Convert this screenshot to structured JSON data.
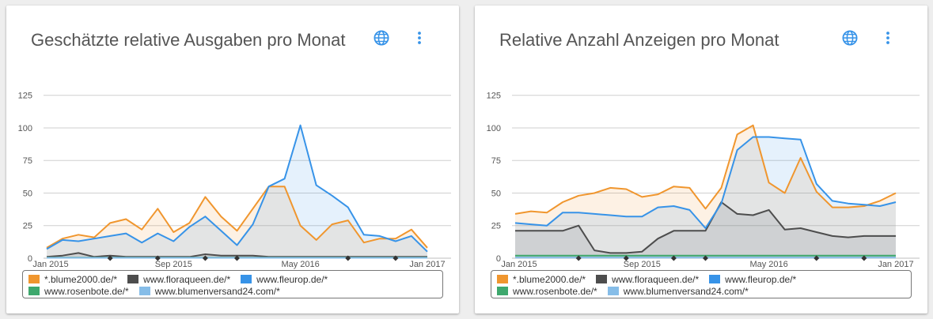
{
  "chart_data": [
    {
      "type": "area",
      "title": "Geschätzte relative Ausgaben pro Monat",
      "y_ticks": [
        "0",
        "25",
        "50",
        "75",
        "100",
        "125"
      ],
      "ylim": [
        0,
        125
      ],
      "x_ticks": [
        {
          "label": "Jan 2015",
          "x": 0
        },
        {
          "label": "Sep 2015",
          "x": 8
        },
        {
          "label": "May 2016",
          "x": 16
        },
        {
          "label": "Jan 2017",
          "x": 24
        }
      ],
      "x_range": [
        0,
        25
      ],
      "event_markers": [
        4,
        7,
        10,
        12,
        19,
        22
      ],
      "grid": true,
      "legend_position": "bottom",
      "series": [
        {
          "name": "*.blume2000.de/*",
          "color": "#f0962e",
          "values": [
            8,
            15,
            18,
            16,
            27,
            30,
            22,
            38,
            20,
            27,
            47,
            32,
            21,
            38,
            55,
            55,
            25,
            14,
            26,
            29,
            12,
            15,
            15,
            22,
            8
          ]
        },
        {
          "name": "www.floraqueen.de/*",
          "color": "#4d4d4d",
          "values": [
            1,
            2,
            4,
            1,
            2,
            1,
            1,
            1,
            1,
            1,
            3,
            2,
            2,
            2,
            1,
            1,
            1,
            1,
            1,
            1,
            1,
            1,
            1,
            1,
            1
          ]
        },
        {
          "name": "www.fleurop.de/*",
          "color": "#3793e8",
          "values": [
            7,
            14,
            13,
            15,
            17,
            19,
            12,
            19,
            13,
            24,
            32,
            21,
            10,
            26,
            55,
            61,
            102,
            56,
            48,
            39,
            18,
            17,
            13,
            17,
            5
          ]
        },
        {
          "name": "www.rosenbote.de/*",
          "color": "#3ea86d",
          "values": [
            0.5,
            0.5,
            0.5,
            0.5,
            0.5,
            0.5,
            0.5,
            0.5,
            0.5,
            0.5,
            0.5,
            0.5,
            0.5,
            0.5,
            0.5,
            0.5,
            0.5,
            0.5,
            0.5,
            0.5,
            0.5,
            0.5,
            0.5,
            0.5,
            0.5
          ]
        },
        {
          "name": "www.blumenversand24.com/*",
          "color": "#86bde8",
          "values": [
            0.3,
            0.3,
            0.3,
            0.3,
            0.3,
            0.3,
            0.3,
            0.3,
            0.3,
            0.3,
            0.3,
            0.3,
            0.3,
            0.3,
            0.3,
            0.3,
            0.3,
            0.3,
            0.3,
            0.3,
            0.3,
            0.3,
            0.3,
            0.3,
            0.3
          ]
        }
      ]
    },
    {
      "type": "area",
      "title": "Relative Anzahl Anzeigen pro Monat",
      "y_ticks": [
        "0",
        "25",
        "50",
        "75",
        "100",
        "125"
      ],
      "ylim": [
        0,
        125
      ],
      "x_ticks": [
        {
          "label": "Jan 2015",
          "x": 0
        },
        {
          "label": "Sep 2015",
          "x": 8
        },
        {
          "label": "May 2016",
          "x": 16
        },
        {
          "label": "Jan 2017",
          "x": 24
        }
      ],
      "x_range": [
        0,
        25
      ],
      "event_markers": [
        4,
        7,
        10,
        12,
        19,
        22
      ],
      "grid": true,
      "legend_position": "bottom",
      "series": [
        {
          "name": "*.blume2000.de/*",
          "color": "#f0962e",
          "values": [
            34,
            36,
            35,
            43,
            48,
            50,
            54,
            53,
            47,
            49,
            55,
            54,
            38,
            54,
            95,
            102,
            58,
            50,
            77,
            51,
            39,
            39,
            40,
            44,
            50
          ]
        },
        {
          "name": "www.floraqueen.de/*",
          "color": "#4d4d4d",
          "values": [
            21,
            21,
            21,
            21,
            25,
            6,
            4,
            4,
            5,
            15,
            21,
            21,
            21,
            43,
            34,
            33,
            37,
            22,
            23,
            20,
            17,
            16,
            17,
            17,
            17
          ]
        },
        {
          "name": "www.fleurop.de/*",
          "color": "#3793e8",
          "values": [
            27,
            26,
            25,
            35,
            35,
            34,
            33,
            32,
            32,
            39,
            40,
            37,
            23,
            42,
            83,
            93,
            93,
            92,
            91,
            57,
            44,
            42,
            41,
            40,
            43
          ]
        },
        {
          "name": "www.rosenbote.de/*",
          "color": "#3ea86d",
          "values": [
            2,
            2,
            2,
            2,
            2,
            2,
            2,
            2,
            2,
            2,
            2,
            2,
            2,
            2,
            2,
            2,
            2,
            2,
            2,
            2,
            2,
            2,
            2,
            2,
            2
          ]
        },
        {
          "name": "www.blumenversand24.com/*",
          "color": "#86bde8",
          "values": [
            0.5,
            0.5,
            0.5,
            0.5,
            0.5,
            0.5,
            0.5,
            0.5,
            0.5,
            0.5,
            0.5,
            0.5,
            0.5,
            0.5,
            0.5,
            0.5,
            0.5,
            0.5,
            0.5,
            0.5,
            0.5,
            0.5,
            0.5,
            0.5,
            0.5
          ]
        }
      ]
    }
  ],
  "icons": {
    "globe": "globe-icon",
    "more": "more-vert-icon",
    "accent": "#3793e8"
  }
}
